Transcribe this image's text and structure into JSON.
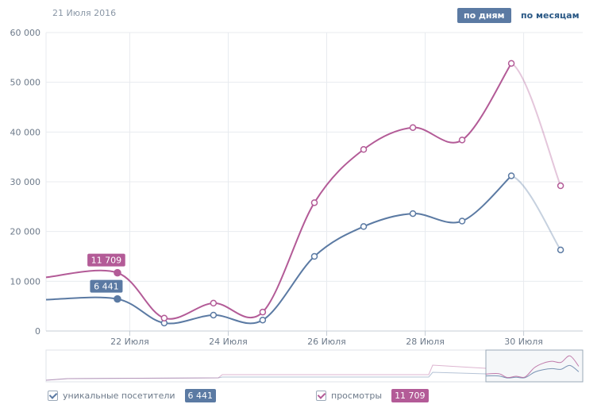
{
  "header": {
    "date": "21 Июля 2016",
    "btn_days": "по дням",
    "btn_months": "по месяцам"
  },
  "colors": {
    "visitors": "#5b7aa3",
    "views": "#b35b97",
    "grid": "#e8ebef"
  },
  "chart_data": {
    "type": "line",
    "title": "",
    "xlabel": "",
    "ylabel": "",
    "ylim": [
      0,
      60000
    ],
    "yticks": [
      0,
      10000,
      20000,
      30000,
      40000,
      50000,
      60000
    ],
    "ytick_labels": [
      "0",
      "10 000",
      "20 000",
      "30 000",
      "40 000",
      "50 000",
      "60 000"
    ],
    "xtick_labels": [
      {
        "day": 21,
        "label": "22 Июля"
      },
      {
        "day": 23,
        "label": "24 Июля"
      },
      {
        "day": 25,
        "label": "26 Июля"
      },
      {
        "day": 27,
        "label": "28 Июля"
      },
      {
        "day": 29,
        "label": "30 Июля"
      }
    ],
    "x_range": [
      19.3,
      30.2
    ],
    "x": [
      19.3,
      20.75,
      21.7,
      22.7,
      23.7,
      24.75,
      25.75,
      26.75,
      27.75,
      28.75,
      29.75
    ],
    "series": [
      {
        "name": "уникальные посетители",
        "values": [
          6300,
          6441,
          1600,
          3200,
          2200,
          15000,
          21000,
          23600,
          22100,
          31200,
          16300
        ]
      },
      {
        "name": "просмотры",
        "values": [
          10800,
          11709,
          2600,
          5600,
          3800,
          25800,
          36500,
          40900,
          38400,
          53800,
          29200
        ]
      }
    ],
    "highlight_index": 1,
    "highlight_labels": [
      "6 441",
      "11 709"
    ]
  },
  "legend": {
    "visitors_label": "уникальные посетители",
    "visitors_value": "6 441",
    "views_label": "просмотры",
    "views_value": "11 709"
  }
}
